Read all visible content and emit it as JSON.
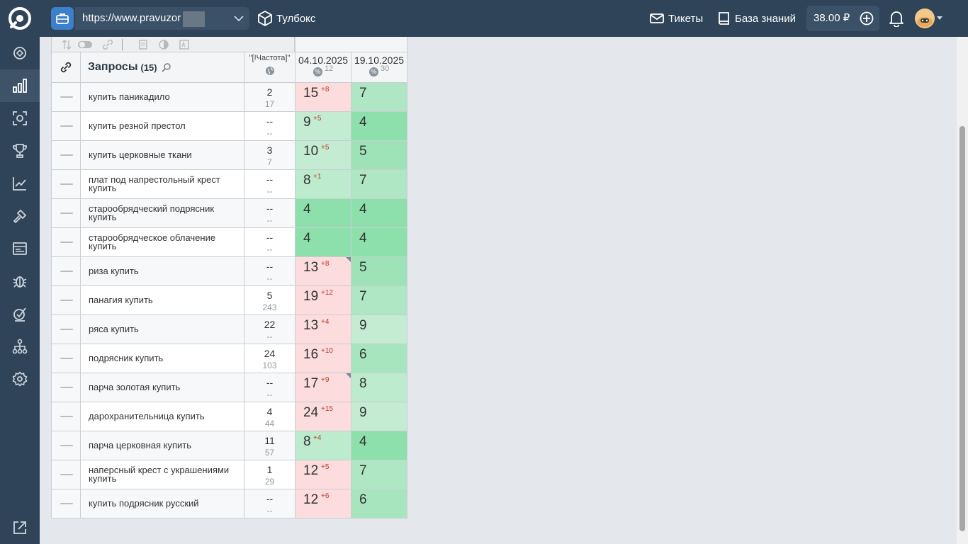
{
  "topbar": {
    "url": "https://www.pravuzor",
    "toolbox_label": "Тулбокс",
    "tickets_label": "Тикеты",
    "kb_label": "База знаний",
    "balance": "38.00 ₽"
  },
  "sidebar": {
    "items": [
      {
        "icon": "dashboard-icon"
      },
      {
        "icon": "positions-chart-icon",
        "active": true
      },
      {
        "icon": "site-audit-icon"
      },
      {
        "icon": "trophy-icon"
      },
      {
        "icon": "analytics-icon"
      },
      {
        "icon": "tools-icon"
      },
      {
        "icon": "monitor-icon"
      },
      {
        "icon": "bug-icon"
      },
      {
        "icon": "checklist-icon"
      },
      {
        "icon": "sitemap-icon"
      },
      {
        "icon": "settings-icon"
      },
      {
        "icon": "external-link-icon"
      }
    ]
  },
  "table": {
    "header": {
      "queries_label": "Запросы",
      "queries_count": "(15)",
      "freq_label": "\"[!Частота]\"",
      "dates": [
        {
          "date": "04.10.2025",
          "sub": "12"
        },
        {
          "date": "19.10.2025",
          "sub": "30"
        }
      ]
    },
    "rows": [
      {
        "query": "купить паникадило",
        "freq": "2",
        "freq2": "17",
        "p1": "15",
        "d1": "+8",
        "p2": "7",
        "c1": "#fcdcdc",
        "c2": "#afe6c4"
      },
      {
        "query": "купить резной престол",
        "freq": "--",
        "freq2": "--",
        "p1": "9",
        "d1": "+5",
        "p2": "4",
        "c1": "#c3ecd2",
        "c2": "#8ddfab"
      },
      {
        "query": "купить церковные ткани",
        "freq": "3",
        "freq2": "7",
        "p1": "10",
        "d1": "+5",
        "p2": "5",
        "c1": "#c3ecd2",
        "c2": "#9de3b7"
      },
      {
        "query": "плат под напрестольный крест купить",
        "freq": "--",
        "freq2": "--",
        "p1": "8",
        "d1": "+1",
        "p2": "7",
        "c1": "#bdebce",
        "c2": "#afe6c4"
      },
      {
        "query": "старообрядческий подрясник купить",
        "freq": "--",
        "freq2": "--",
        "p1": "4",
        "d1": "",
        "p2": "4",
        "c1": "#8ddfab",
        "c2": "#8ddfab"
      },
      {
        "query": "старообрядческое облачение купить",
        "freq": "--",
        "freq2": "--",
        "p1": "4",
        "d1": "",
        "p2": "4",
        "c1": "#8ddfab",
        "c2": "#8ddfab"
      },
      {
        "query": "риза купить",
        "freq": "--",
        "freq2": "--",
        "p1": "13",
        "d1": "+8",
        "p2": "5",
        "c1": "#fcdcdc",
        "c2": "#9de3b7",
        "corner": true
      },
      {
        "query": "панагия купить",
        "freq": "5",
        "freq2": "243",
        "p1": "19",
        "d1": "+12",
        "p2": "7",
        "c1": "#fcdcdc",
        "c2": "#afe6c4"
      },
      {
        "query": "ряса купить",
        "freq": "22",
        "freq2": "--",
        "p1": "13",
        "d1": "+4",
        "p2": "9",
        "c1": "#fcdcdc",
        "c2": "#c3ecd2"
      },
      {
        "query": "подрясник купить",
        "freq": "24",
        "freq2": "103",
        "p1": "16",
        "d1": "+10",
        "p2": "6",
        "c1": "#fcdcdc",
        "c2": "#a7e5be"
      },
      {
        "query": "парча золотая купить",
        "freq": "--",
        "freq2": "--",
        "p1": "17",
        "d1": "+9",
        "p2": "8",
        "c1": "#fcdcdc",
        "c2": "#bdebce",
        "corner": true
      },
      {
        "query": "дарохранительница купить",
        "freq": "4",
        "freq2": "44",
        "p1": "24",
        "d1": "+15",
        "p2": "9",
        "c1": "#fcdcdc",
        "c2": "#c3ecd2"
      },
      {
        "query": "парча церковная купить",
        "freq": "11",
        "freq2": "57",
        "p1": "8",
        "d1": "+4",
        "p2": "4",
        "c1": "#bdebce",
        "c2": "#8ddfab"
      },
      {
        "query": "наперсный крест с украшениями купить",
        "freq": "1",
        "freq2": "29",
        "p1": "12",
        "d1": "+5",
        "p2": "7",
        "c1": "#fcdcdc",
        "c2": "#afe6c4"
      },
      {
        "query": "купить подрясник русский",
        "freq": "--",
        "freq2": "--",
        "p1": "12",
        "d1": "+6",
        "p2": "6",
        "c1": "#fcdcdc",
        "c2": "#a7e5be"
      }
    ]
  }
}
